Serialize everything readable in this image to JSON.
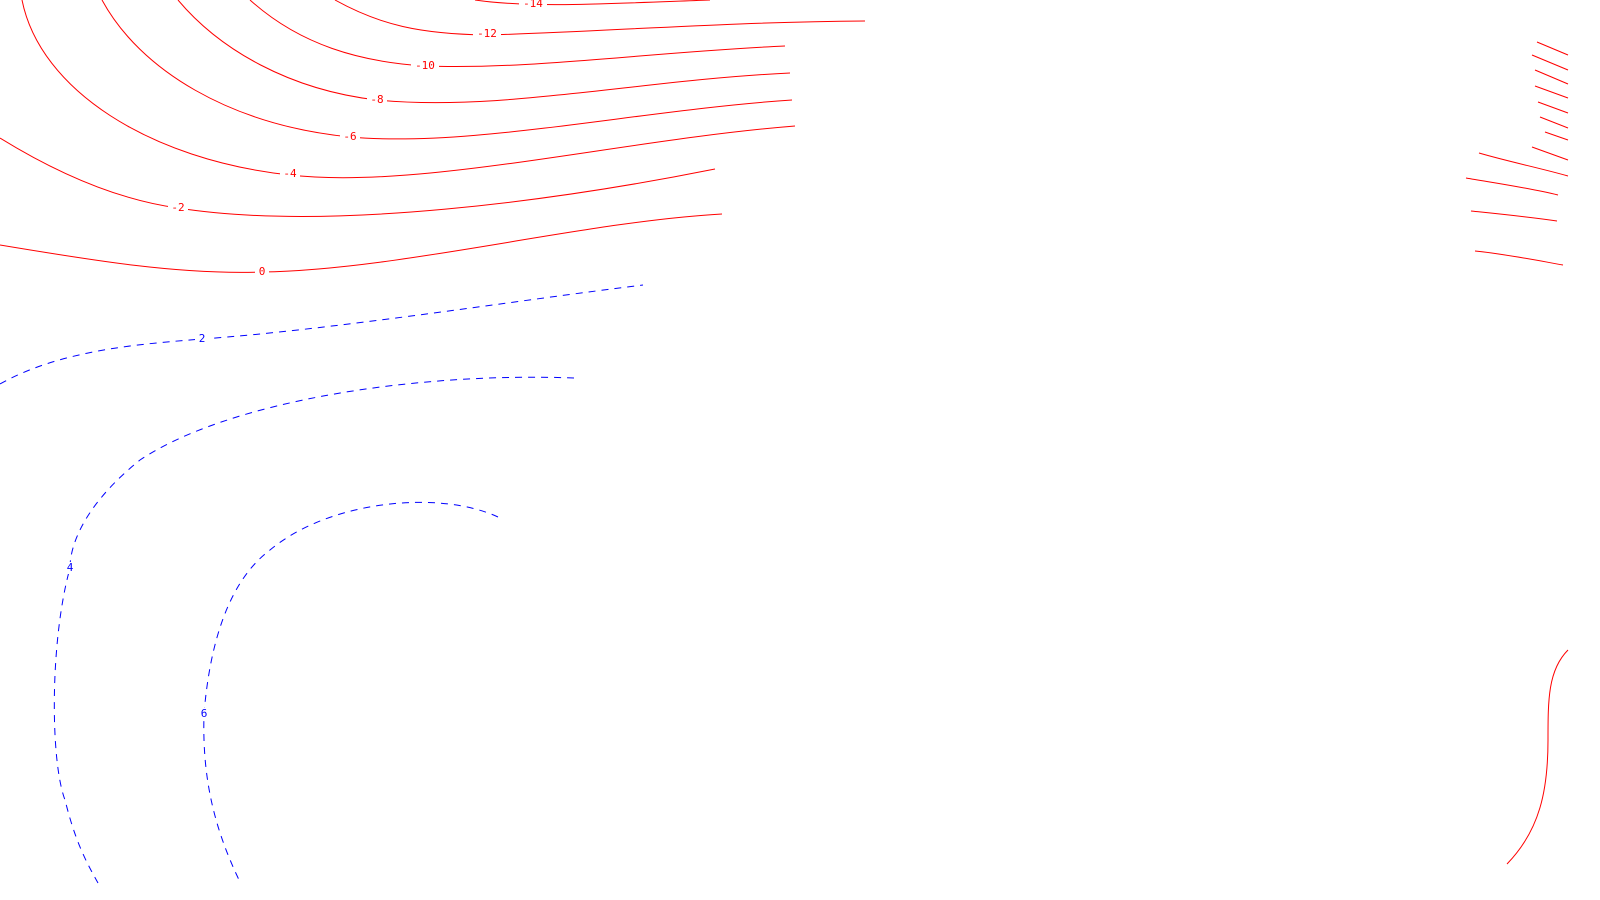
{
  "colors": {
    "negative": "#ff0000",
    "positive": "#0000ff",
    "background": "#ffffff"
  },
  "contours": [
    {
      "id": "neg-14",
      "value": -14,
      "label": "-14",
      "style": "solid",
      "color": "negative"
    },
    {
      "id": "neg-12",
      "value": -12,
      "label": "-12",
      "style": "solid",
      "color": "negative"
    },
    {
      "id": "neg-10",
      "value": -10,
      "label": "-10",
      "style": "solid",
      "color": "negative"
    },
    {
      "id": "neg-8",
      "value": -8,
      "label": "-8",
      "style": "solid",
      "color": "negative"
    },
    {
      "id": "neg-6",
      "value": -6,
      "label": "-6",
      "style": "solid",
      "color": "negative"
    },
    {
      "id": "neg-4",
      "value": -4,
      "label": "-4",
      "style": "solid",
      "color": "negative"
    },
    {
      "id": "neg-2",
      "value": -2,
      "label": "-2",
      "style": "solid",
      "color": "negative"
    },
    {
      "id": "zero",
      "value": 0,
      "label": "0",
      "style": "solid",
      "color": "negative"
    },
    {
      "id": "pos-2",
      "value": 2,
      "label": "2",
      "style": "dashed",
      "color": "positive"
    },
    {
      "id": "pos-4",
      "value": 4,
      "label": "4",
      "style": "dashed",
      "color": "positive"
    },
    {
      "id": "pos-6",
      "value": 6,
      "label": "6",
      "style": "dashed",
      "color": "positive"
    }
  ]
}
